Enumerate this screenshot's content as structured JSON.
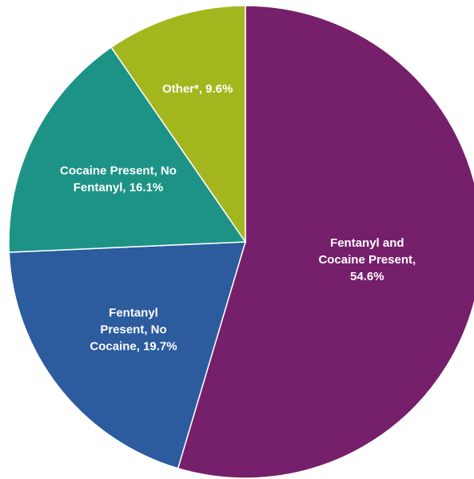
{
  "chart_data": {
    "type": "pie",
    "title": "",
    "slices": [
      {
        "name": "Fentanyl and Cocaine Present",
        "value": 54.6,
        "color": "#761f6b",
        "label_lines": [
          "Fentanyl and",
          "Cocaine Present,",
          "54.6%"
        ]
      },
      {
        "name": "Fentanyl Present, No Cocaine",
        "value": 19.7,
        "color": "#2c5b9e",
        "label_lines": [
          "Fentanyl",
          "Present, No",
          "Cocaine, 19.7%"
        ]
      },
      {
        "name": "Cocaine Present, No Fentanyl",
        "value": 16.1,
        "color": "#1d9385",
        "label_lines": [
          "Cocaine Present, No",
          "Fentanyl, 16.1%"
        ]
      },
      {
        "name": "Other*",
        "value": 9.6,
        "color": "#a4b61e",
        "label_lines": [
          "Other*, 9.6%"
        ]
      }
    ],
    "start": "top",
    "direction": "clockwise"
  }
}
